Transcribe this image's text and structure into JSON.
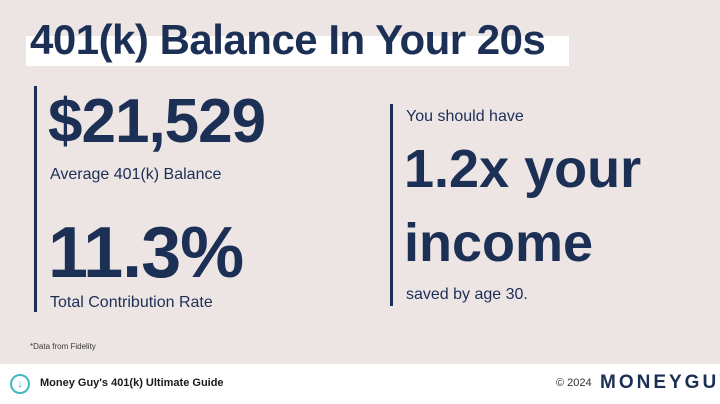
{
  "title": "401(k) Balance In Your 20s",
  "left": {
    "balance": "$21,529",
    "balance_label": "Average 401(k) Balance",
    "rate": "11.3%",
    "rate_label": "Total Contribution Rate"
  },
  "right": {
    "intro": "You should have",
    "multiple": "1.2x your",
    "income": "income",
    "outro": "saved by age 30."
  },
  "note": "*Data from Fidelity",
  "footer": {
    "guide": "Money Guy's 401(k) Ultimate Guide",
    "copyright": "© 2024",
    "logo": "MONEYGUY",
    "icon": "download-bubble-icon"
  },
  "colors": {
    "navy": "#1c2f55",
    "background": "#ede4e4",
    "accent": "#3fb9c4"
  }
}
